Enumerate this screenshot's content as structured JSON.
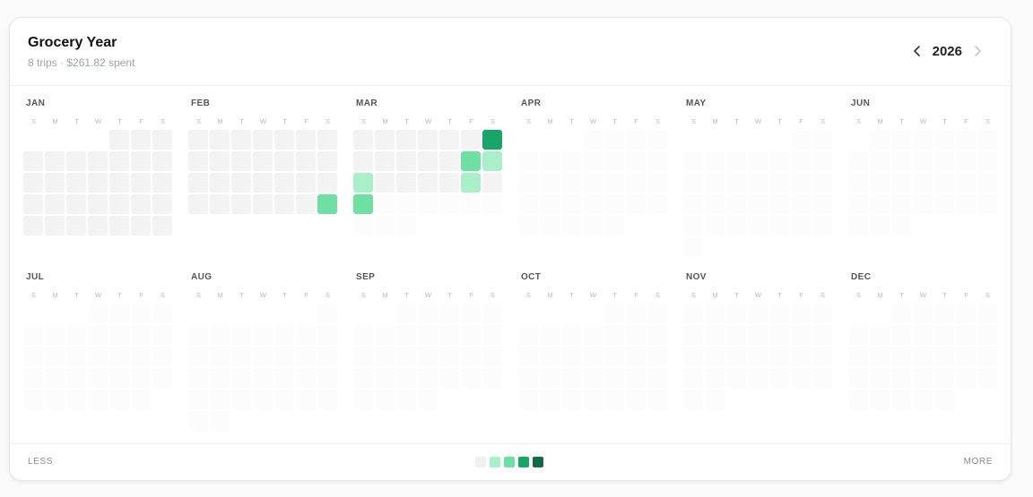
{
  "header": {
    "title": "Grocery Year",
    "subtitle": "8 trips · $261.82 spent",
    "year": "2026",
    "prev_icon": "chevron-left-icon",
    "next_icon": "chevron-right-icon"
  },
  "weekdays": [
    "S",
    "M",
    "T",
    "W",
    "T",
    "F",
    "S"
  ],
  "levels": [
    "#f1f1f1",
    "#a7f0c9",
    "#6de0a2",
    "#16a768",
    "#0e6b45"
  ],
  "colors": {
    "past_empty": "#f3f3f3",
    "future_empty": "#fcfcfc"
  },
  "today": "2026-03-22",
  "months": [
    {
      "name": "JAN",
      "days": 31,
      "start_dow": 4,
      "activity": {}
    },
    {
      "name": "FEB",
      "days": 28,
      "start_dow": 0,
      "activity": {
        "28": 2
      }
    },
    {
      "name": "MAR",
      "days": 31,
      "start_dow": 0,
      "activity": {
        "7": 3,
        "13": 2,
        "14": 1,
        "15": 1,
        "20": 1,
        "22": 2
      }
    },
    {
      "name": "APR",
      "days": 30,
      "start_dow": 3,
      "activity": {}
    },
    {
      "name": "MAY",
      "days": 31,
      "start_dow": 5,
      "activity": {}
    },
    {
      "name": "JUN",
      "days": 30,
      "start_dow": 1,
      "activity": {}
    },
    {
      "name": "JUL",
      "days": 31,
      "start_dow": 3,
      "activity": {}
    },
    {
      "name": "AUG",
      "days": 31,
      "start_dow": 6,
      "activity": {}
    },
    {
      "name": "SEP",
      "days": 30,
      "start_dow": 2,
      "activity": {}
    },
    {
      "name": "OCT",
      "days": 31,
      "start_dow": 4,
      "activity": {}
    },
    {
      "name": "NOV",
      "days": 30,
      "start_dow": 0,
      "activity": {}
    },
    {
      "name": "DEC",
      "days": 31,
      "start_dow": 2,
      "activity": {}
    }
  ],
  "footer": {
    "less": "LESS",
    "more": "MORE"
  }
}
